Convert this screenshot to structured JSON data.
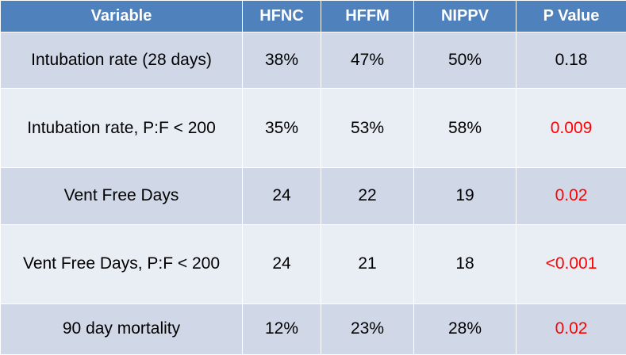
{
  "headers": [
    "Variable",
    "HFNC",
    "HFFM",
    "NIPPV",
    "P Value"
  ],
  "rows": [
    {
      "variable": "Intubation rate (28 days)",
      "hfnc": "38%",
      "hffm": "47%",
      "nippv": "50%",
      "p": "0.18"
    },
    {
      "variable": "Intubation rate, P:F < 200",
      "hfnc": "35%",
      "hffm": "53%",
      "nippv": "58%",
      "p": "0.009"
    },
    {
      "variable": "Vent Free Days",
      "hfnc": "24",
      "hffm": "22",
      "nippv": "19",
      "p": "0.02"
    },
    {
      "variable": "Vent Free Days, P:F < 200",
      "hfnc": "24",
      "hffm": "21",
      "nippv": "18",
      "p": "<0.001"
    },
    {
      "variable": "90 day mortality",
      "hfnc": "12%",
      "hffm": "23%",
      "nippv": "28%",
      "p": "0.02"
    }
  ],
  "colors": {
    "header_bg": "#4f81bd",
    "row_odd_bg": "#d0d8e8",
    "row_even_bg": "#e9edf4",
    "significant_text": "#ff0000"
  }
}
